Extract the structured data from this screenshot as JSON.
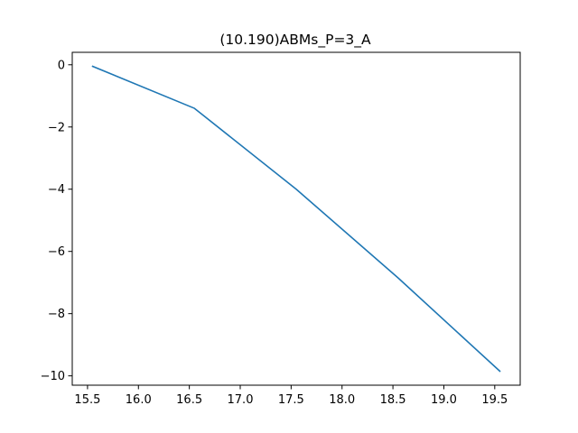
{
  "chart_data": {
    "type": "line",
    "title": "(10.190)ABMs_P=3_A",
    "xlabel": "",
    "ylabel": "",
    "xlim": [
      15.35,
      19.75
    ],
    "ylim": [
      -10.3,
      0.4
    ],
    "xticks": [
      15.5,
      16.0,
      16.5,
      17.0,
      17.5,
      18.0,
      18.5,
      19.0,
      19.5
    ],
    "xtick_labels": [
      "15.5",
      "16.0",
      "16.5",
      "17.0",
      "17.5",
      "18.0",
      "18.5",
      "19.0",
      "19.5"
    ],
    "yticks": [
      0,
      -2,
      -4,
      -6,
      -8,
      -10
    ],
    "ytick_labels": [
      "0",
      "−2",
      "−4",
      "−6",
      "−8",
      "−10"
    ],
    "grid": false,
    "legend": "none",
    "series": [
      {
        "color": "#1f77b4",
        "x": [
          15.55,
          16.55,
          17.55,
          18.55,
          19.55
        ],
        "y": [
          -0.05,
          -1.4,
          -4.0,
          -6.85,
          -9.85
        ]
      }
    ]
  }
}
